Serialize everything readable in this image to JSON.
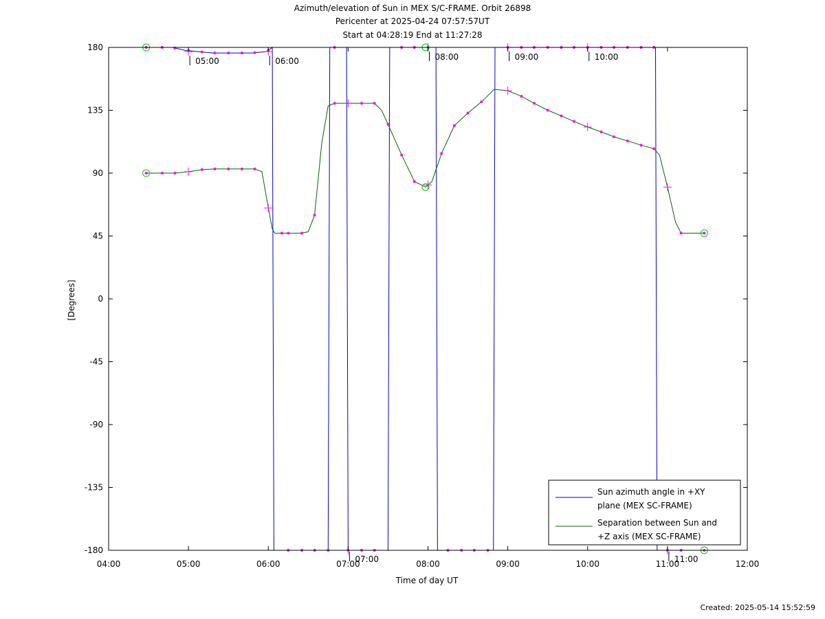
{
  "header": {
    "line1": "Azimuth/elevation of Sun in MEX S/C-FRAME.  Orbit 26898",
    "line2": "Pericenter at 2025-04-24 07:57:57UT",
    "line3": "Start at 04:28:19 End at 11:27:28"
  },
  "footer": {
    "created": "Created: 2025-05-14 15:52:59"
  },
  "chart_data": {
    "type": "line",
    "xlabel": "Time of day UT",
    "ylabel": "[Degrees]",
    "xlim": [
      4.0,
      12.0
    ],
    "ylim": [
      -180,
      180
    ],
    "x_ticks": [
      4,
      5,
      6,
      7,
      8,
      9,
      10,
      11,
      12
    ],
    "x_tick_labels": [
      "04:00",
      "05:00",
      "06:00",
      "07:00",
      "08:00",
      "09:00",
      "10:00",
      "11:00",
      "12:00"
    ],
    "y_ticks": [
      180,
      135,
      90,
      45,
      0,
      -45,
      -90,
      -135,
      -180
    ],
    "y_tick_labels": [
      "180",
      "135",
      "90",
      "45",
      "0",
      "-45",
      "-90",
      "-135",
      "-180"
    ],
    "grid": false,
    "legend_position": "bottom-right",
    "colors": {
      "azimuth": "#0000cc",
      "separation": "#006600",
      "markers": "#ff00ff",
      "endpoints": "#00cc00"
    },
    "series": [
      {
        "name": "Sun azimuth angle in +XY plane (MEX SC-FRAME)",
        "legend_lines": [
          "Sun azimuth angle in +XY",
          "plane (MEX SC-FRAME)"
        ],
        "segments": [
          [
            [
              4.47,
              180
            ],
            [
              4.8,
              180
            ],
            [
              4.95,
              178
            ],
            [
              5.3,
              176
            ],
            [
              5.8,
              176
            ],
            [
              5.98,
              177
            ],
            [
              6.05,
              180
            ],
            [
              6.06,
              0
            ],
            [
              6.07,
              -180
            ]
          ],
          [
            [
              6.07,
              -180
            ],
            [
              6.75,
              -180
            ],
            [
              6.76,
              0
            ],
            [
              6.77,
              180
            ]
          ],
          [
            [
              6.77,
              180
            ],
            [
              6.98,
              180
            ],
            [
              6.99,
              0
            ],
            [
              7.0,
              -180
            ]
          ],
          [
            [
              7.0,
              -180
            ],
            [
              7.5,
              -180
            ],
            [
              7.51,
              0
            ],
            [
              7.52,
              180
            ]
          ],
          [
            [
              7.52,
              180
            ],
            [
              8.1,
              180
            ],
            [
              8.11,
              0
            ],
            [
              8.12,
              -180
            ]
          ],
          [
            [
              8.12,
              -180
            ],
            [
              8.82,
              -180
            ],
            [
              8.83,
              0
            ],
            [
              8.84,
              180
            ]
          ],
          [
            [
              8.84,
              180
            ],
            [
              10.85,
              180
            ],
            [
              10.86,
              0
            ],
            [
              10.87,
              -180
            ]
          ],
          [
            [
              10.87,
              -180
            ],
            [
              11.46,
              -180
            ]
          ]
        ],
        "marker_times": [
          4.47,
          4.67,
          4.83,
          5.0,
          5.17,
          5.33,
          5.5,
          5.67,
          5.83,
          6.0,
          6.25,
          6.42,
          6.58,
          6.75,
          6.83,
          7.0,
          7.17,
          7.33,
          7.67,
          7.83,
          8.0,
          8.25,
          8.42,
          8.58,
          8.75,
          9.0,
          9.17,
          9.33,
          9.5,
          9.67,
          9.83,
          10.0,
          10.17,
          10.33,
          10.5,
          10.67,
          10.83,
          11.0,
          11.17,
          11.46
        ],
        "hour_labels": [
          {
            "x": 5.0,
            "y": 177,
            "text": "05:00"
          },
          {
            "x": 6.0,
            "y": 177,
            "text": "06:00"
          },
          {
            "x": 7.0,
            "y": -180,
            "text": "07:00"
          },
          {
            "x": 8.0,
            "y": 180,
            "text": "08:00"
          },
          {
            "x": 9.0,
            "y": 180,
            "text": "09:00"
          },
          {
            "x": 10.0,
            "y": 180,
            "text": "10:00"
          },
          {
            "x": 11.0,
            "y": -180,
            "text": "11:00"
          }
        ]
      },
      {
        "name": "Separation between Sun and +Z axis (MEX SC-FRAME)",
        "legend_lines": [
          "Separation between Sun and",
          "+Z axis (MEX SC-FRAME)"
        ],
        "points": [
          [
            4.47,
            90
          ],
          [
            4.67,
            90
          ],
          [
            4.83,
            90
          ],
          [
            5.0,
            91
          ],
          [
            5.17,
            92.5
          ],
          [
            5.33,
            93
          ],
          [
            5.5,
            93
          ],
          [
            5.67,
            93
          ],
          [
            5.83,
            93
          ],
          [
            5.92,
            91
          ],
          [
            6.0,
            65
          ],
          [
            6.05,
            50
          ],
          [
            6.08,
            47
          ],
          [
            6.17,
            47
          ],
          [
            6.25,
            47
          ],
          [
            6.42,
            47
          ],
          [
            6.5,
            48
          ],
          [
            6.58,
            60
          ],
          [
            6.67,
            112
          ],
          [
            6.75,
            138
          ],
          [
            6.83,
            140
          ],
          [
            7.0,
            140
          ],
          [
            7.17,
            140
          ],
          [
            7.33,
            140
          ],
          [
            7.42,
            135
          ],
          [
            7.5,
            125
          ],
          [
            7.67,
            103
          ],
          [
            7.83,
            84
          ],
          [
            7.97,
            80
          ],
          [
            8.05,
            84
          ],
          [
            8.17,
            104
          ],
          [
            8.33,
            124
          ],
          [
            8.5,
            133
          ],
          [
            8.67,
            141
          ],
          [
            8.83,
            150
          ],
          [
            9.0,
            149
          ],
          [
            9.17,
            145
          ],
          [
            9.33,
            140
          ],
          [
            9.5,
            135
          ],
          [
            9.67,
            131
          ],
          [
            9.83,
            127
          ],
          [
            10.0,
            123
          ],
          [
            10.17,
            119.5
          ],
          [
            10.33,
            116
          ],
          [
            10.5,
            113
          ],
          [
            10.67,
            110
          ],
          [
            10.83,
            107.5
          ],
          [
            10.9,
            103
          ],
          [
            11.0,
            80
          ],
          [
            11.1,
            55
          ],
          [
            11.17,
            47
          ],
          [
            11.33,
            47
          ],
          [
            11.46,
            47
          ]
        ],
        "marker_times": [
          4.47,
          4.67,
          4.83,
          5.17,
          5.33,
          5.5,
          5.67,
          5.83,
          6.17,
          6.25,
          6.42,
          6.58,
          6.83,
          7.17,
          7.33,
          7.5,
          7.67,
          7.83,
          8.17,
          8.33,
          8.5,
          8.67,
          9.17,
          9.33,
          9.5,
          9.67,
          9.83,
          10.17,
          10.33,
          10.5,
          10.67,
          10.83,
          11.17,
          11.46
        ],
        "cross_times": [
          5.0,
          6.0,
          7.0,
          8.0,
          9.0,
          10.0,
          11.0
        ]
      }
    ],
    "endpoint_markers": [
      {
        "x": 4.47,
        "y": 180
      },
      {
        "x": 11.46,
        "y": -180
      },
      {
        "x": 4.47,
        "y": 90
      },
      {
        "x": 11.46,
        "y": 47
      },
      {
        "x": 7.97,
        "y": 80
      },
      {
        "x": 7.97,
        "y": 180
      }
    ]
  }
}
